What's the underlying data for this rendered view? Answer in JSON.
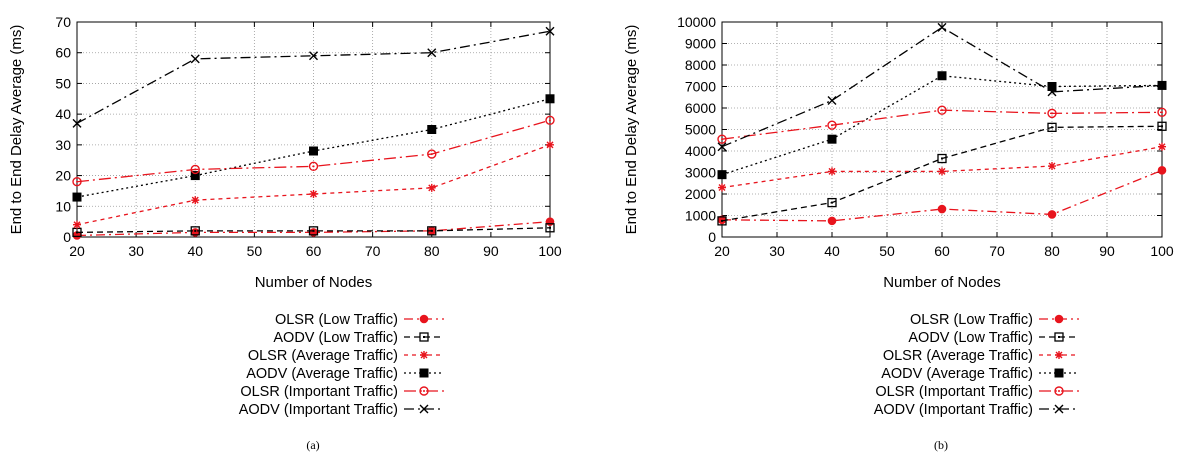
{
  "styles": {
    "OLSR (Low Traffic)": {
      "color": "#e8141d",
      "dash": "9 4 2 4",
      "marker": "filled-circle"
    },
    "AODV (Low Traffic)": {
      "color": "#000000",
      "dash": "6 4",
      "marker": "open-square"
    },
    "OLSR (Average Traffic)": {
      "color": "#e8141d",
      "dash": "4 4",
      "marker": "star"
    },
    "AODV (Average Traffic)": {
      "color": "#000000",
      "dash": "2 3",
      "marker": "filled-square"
    },
    "OLSR (Important Traffic)": {
      "color": "#e8141d",
      "dash": "12 4 2 4",
      "marker": "open-circle"
    },
    "AODV (Important Traffic)": {
      "color": "#000000",
      "dash": "10 4 2 4",
      "marker": "x"
    }
  },
  "chart_data": [
    {
      "type": "line",
      "caption": "(a)",
      "xlabel": "Number of Nodes",
      "ylabel": "End to End Delay Average (ms)",
      "xlim": [
        20,
        100
      ],
      "ylim": [
        0,
        70
      ],
      "xticks": [
        20,
        30,
        40,
        50,
        60,
        70,
        80,
        90,
        100
      ],
      "yticks": [
        0,
        10,
        20,
        30,
        40,
        50,
        60,
        70
      ],
      "grid": true,
      "legend": "below",
      "x": [
        20,
        40,
        60,
        80,
        100
      ],
      "series": [
        {
          "name": "OLSR (Low Traffic)",
          "values": [
            0.5,
            1.5,
            1.5,
            2,
            5
          ]
        },
        {
          "name": "AODV (Low Traffic)",
          "values": [
            1.5,
            2,
            2,
            2,
            3
          ]
        },
        {
          "name": "OLSR (Average Traffic)",
          "values": [
            4,
            12,
            14,
            16,
            30
          ]
        },
        {
          "name": "AODV (Average Traffic)",
          "values": [
            13,
            20,
            28,
            35,
            45
          ]
        },
        {
          "name": "OLSR (Important Traffic)",
          "values": [
            18,
            22,
            23,
            27,
            38
          ]
        },
        {
          "name": "AODV (Important Traffic)",
          "values": [
            37,
            58,
            59,
            60,
            67
          ]
        }
      ]
    },
    {
      "type": "line",
      "caption": "(b)",
      "xlabel": "Number of Nodes",
      "ylabel": "End to End Delay Average (ms)",
      "xlim": [
        20,
        100
      ],
      "ylim": [
        0,
        10000
      ],
      "xticks": [
        20,
        30,
        40,
        50,
        60,
        70,
        80,
        90,
        100
      ],
      "yticks": [
        0,
        1000,
        2000,
        3000,
        4000,
        5000,
        6000,
        7000,
        8000,
        9000,
        10000
      ],
      "grid": true,
      "legend": "below",
      "x": [
        20,
        40,
        60,
        80,
        100
      ],
      "series": [
        {
          "name": "OLSR (Low Traffic)",
          "values": [
            800,
            750,
            1300,
            1050,
            3100
          ]
        },
        {
          "name": "AODV (Low Traffic)",
          "values": [
            750,
            1600,
            3650,
            5100,
            5150
          ]
        },
        {
          "name": "OLSR (Average Traffic)",
          "values": [
            2300,
            3050,
            3050,
            3300,
            4200
          ]
        },
        {
          "name": "AODV (Average Traffic)",
          "values": [
            2900,
            4550,
            7500,
            7000,
            7050
          ]
        },
        {
          "name": "OLSR (Important Traffic)",
          "values": [
            4550,
            5200,
            5900,
            5750,
            5800
          ]
        },
        {
          "name": "AODV (Important Traffic)",
          "values": [
            4200,
            6350,
            9750,
            6750,
            7050
          ]
        }
      ]
    }
  ]
}
